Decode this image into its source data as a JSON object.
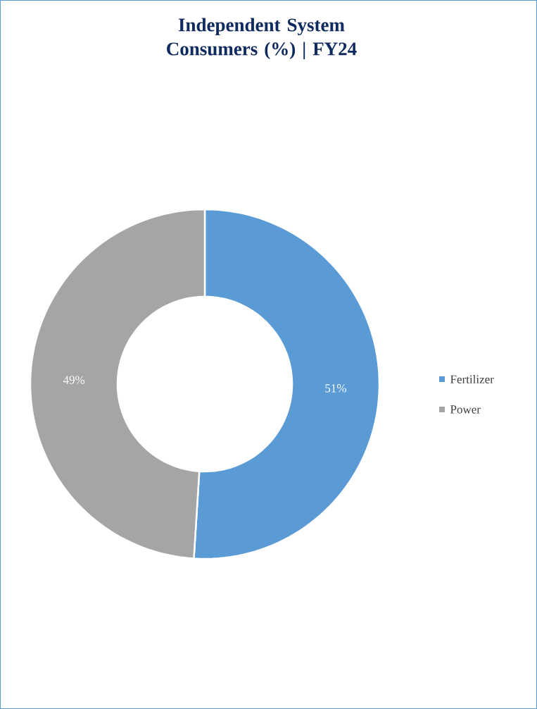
{
  "chart_data": {
    "type": "donut",
    "title": "Independent System Consumers (%) | FY24",
    "categories": [
      "Fertilizer",
      "Power"
    ],
    "values": [
      51,
      49
    ],
    "colors": [
      "#5b9bd5",
      "#a5a5a5"
    ],
    "value_labels": [
      "51%",
      "49%"
    ],
    "legend": "right"
  }
}
